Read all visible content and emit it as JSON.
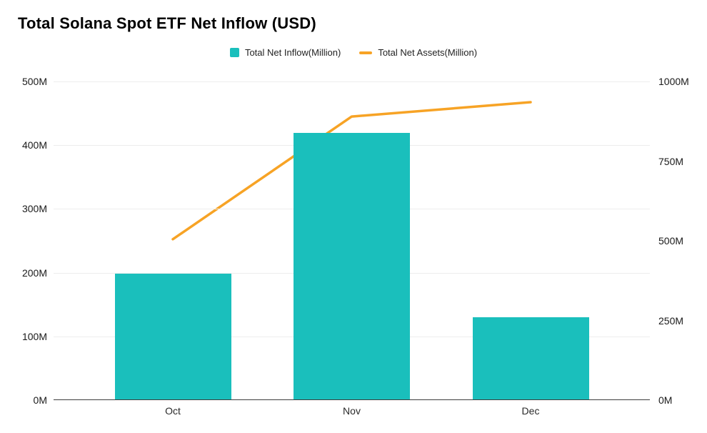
{
  "title": "Total Solana Spot ETF Net Inflow (USD)",
  "legend": [
    {
      "label": "Total Net Inflow(Million)",
      "type": "bar",
      "color": "#1ABFBC"
    },
    {
      "label": "Total Net Assets(Million)",
      "type": "line",
      "color": "#F7A325"
    }
  ],
  "chart_data": {
    "type": "bar",
    "subtype": "bar+line combo, dual y-axis",
    "title": "Total Solana Spot ETF Net Inflow (USD)",
    "categories": [
      "Oct",
      "Nov",
      "Dec"
    ],
    "series": [
      {
        "name": "Total Net Inflow(Million)",
        "type": "bar",
        "axis": "left",
        "color": "#1ABFBC",
        "values": [
          198,
          419,
          130
        ]
      },
      {
        "name": "Total Net Assets(Million)",
        "type": "line",
        "axis": "right",
        "color": "#F7A325",
        "values": [
          505,
          890,
          935
        ]
      }
    ],
    "left_axis": {
      "min": 0,
      "max": 500,
      "tick_values": [
        0,
        100,
        200,
        300,
        400,
        500
      ],
      "tick_labels": [
        "0M",
        "100M",
        "200M",
        "300M",
        "400M",
        "500M"
      ]
    },
    "right_axis": {
      "min": 0,
      "max": 1000,
      "tick_values": [
        0,
        250,
        500,
        750,
        1000
      ],
      "tick_labels": [
        "0M",
        "250M",
        "500M",
        "750M",
        "1000M"
      ]
    },
    "grid": true,
    "legend_position": "top-center",
    "colors": {
      "background": "#ffffff",
      "gridline": "#ededed",
      "axis_line": "#3d3d3d",
      "text": "#1a1a1a"
    }
  }
}
